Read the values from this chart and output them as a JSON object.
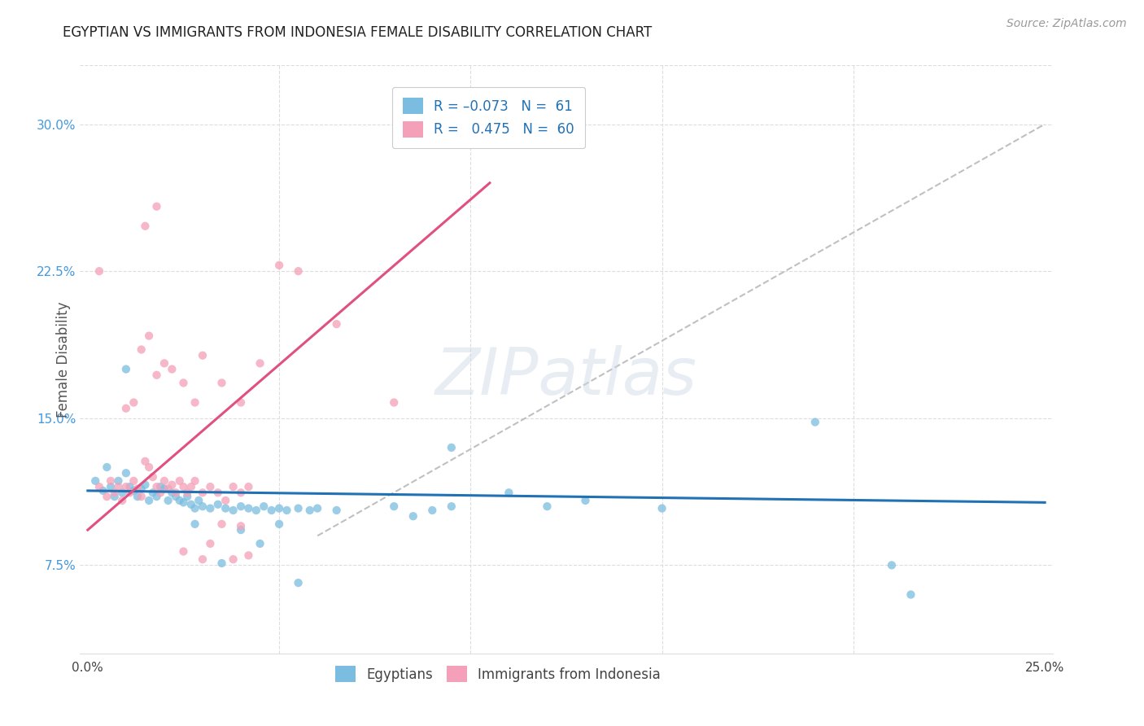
{
  "title": "EGYPTIAN VS IMMIGRANTS FROM INDONESIA FEMALE DISABILITY CORRELATION CHART",
  "source": "Source: ZipAtlas.com",
  "ylabel": "Female Disability",
  "ytick_labels": [
    "7.5%",
    "15.0%",
    "22.5%",
    "30.0%"
  ],
  "ytick_values": [
    0.075,
    0.15,
    0.225,
    0.3
  ],
  "xlim": [
    -0.002,
    0.252
  ],
  "ylim": [
    0.03,
    0.33
  ],
  "blue_color": "#7bbde0",
  "pink_color": "#f4a0b8",
  "blue_line_color": "#2171b5",
  "pink_line_color": "#e05080",
  "dashed_line_color": "#c0c0c0",
  "title_color": "#222222",
  "source_color": "#999999",
  "axis_label_color": "#555555",
  "right_tick_color": "#4499dd",
  "blue_scatter": [
    [
      0.002,
      0.118
    ],
    [
      0.004,
      0.113
    ],
    [
      0.005,
      0.125
    ],
    [
      0.006,
      0.115
    ],
    [
      0.007,
      0.11
    ],
    [
      0.008,
      0.118
    ],
    [
      0.009,
      0.112
    ],
    [
      0.01,
      0.122
    ],
    [
      0.011,
      0.115
    ],
    [
      0.012,
      0.113
    ],
    [
      0.013,
      0.11
    ],
    [
      0.014,
      0.114
    ],
    [
      0.015,
      0.116
    ],
    [
      0.016,
      0.108
    ],
    [
      0.017,
      0.112
    ],
    [
      0.018,
      0.11
    ],
    [
      0.019,
      0.115
    ],
    [
      0.02,
      0.114
    ],
    [
      0.021,
      0.108
    ],
    [
      0.022,
      0.112
    ],
    [
      0.023,
      0.11
    ],
    [
      0.024,
      0.108
    ],
    [
      0.025,
      0.107
    ],
    [
      0.026,
      0.11
    ],
    [
      0.027,
      0.106
    ],
    [
      0.028,
      0.104
    ],
    [
      0.029,
      0.108
    ],
    [
      0.03,
      0.105
    ],
    [
      0.032,
      0.104
    ],
    [
      0.034,
      0.106
    ],
    [
      0.036,
      0.104
    ],
    [
      0.038,
      0.103
    ],
    [
      0.04,
      0.105
    ],
    [
      0.042,
      0.104
    ],
    [
      0.044,
      0.103
    ],
    [
      0.046,
      0.105
    ],
    [
      0.048,
      0.103
    ],
    [
      0.05,
      0.104
    ],
    [
      0.052,
      0.103
    ],
    [
      0.055,
      0.104
    ],
    [
      0.058,
      0.103
    ],
    [
      0.06,
      0.104
    ],
    [
      0.065,
      0.103
    ],
    [
      0.028,
      0.096
    ],
    [
      0.04,
      0.093
    ],
    [
      0.05,
      0.096
    ],
    [
      0.045,
      0.086
    ],
    [
      0.035,
      0.076
    ],
    [
      0.055,
      0.066
    ],
    [
      0.08,
      0.105
    ],
    [
      0.085,
      0.1
    ],
    [
      0.09,
      0.103
    ],
    [
      0.095,
      0.105
    ],
    [
      0.11,
      0.112
    ],
    [
      0.12,
      0.105
    ],
    [
      0.13,
      0.108
    ],
    [
      0.15,
      0.104
    ],
    [
      0.01,
      0.175
    ],
    [
      0.095,
      0.135
    ],
    [
      0.19,
      0.148
    ],
    [
      0.21,
      0.075
    ],
    [
      0.215,
      0.06
    ]
  ],
  "pink_scatter": [
    [
      0.003,
      0.115
    ],
    [
      0.005,
      0.11
    ],
    [
      0.006,
      0.118
    ],
    [
      0.007,
      0.112
    ],
    [
      0.008,
      0.115
    ],
    [
      0.009,
      0.108
    ],
    [
      0.01,
      0.115
    ],
    [
      0.011,
      0.112
    ],
    [
      0.012,
      0.118
    ],
    [
      0.013,
      0.114
    ],
    [
      0.014,
      0.11
    ],
    [
      0.015,
      0.128
    ],
    [
      0.016,
      0.125
    ],
    [
      0.017,
      0.12
    ],
    [
      0.018,
      0.115
    ],
    [
      0.019,
      0.112
    ],
    [
      0.02,
      0.118
    ],
    [
      0.021,
      0.114
    ],
    [
      0.022,
      0.116
    ],
    [
      0.023,
      0.112
    ],
    [
      0.024,
      0.118
    ],
    [
      0.025,
      0.115
    ],
    [
      0.026,
      0.112
    ],
    [
      0.027,
      0.115
    ],
    [
      0.028,
      0.118
    ],
    [
      0.03,
      0.112
    ],
    [
      0.032,
      0.115
    ],
    [
      0.034,
      0.112
    ],
    [
      0.036,
      0.108
    ],
    [
      0.038,
      0.115
    ],
    [
      0.04,
      0.112
    ],
    [
      0.042,
      0.115
    ],
    [
      0.003,
      0.225
    ],
    [
      0.01,
      0.155
    ],
    [
      0.012,
      0.158
    ],
    [
      0.014,
      0.185
    ],
    [
      0.016,
      0.192
    ],
    [
      0.018,
      0.172
    ],
    [
      0.02,
      0.178
    ],
    [
      0.022,
      0.175
    ],
    [
      0.025,
      0.168
    ],
    [
      0.028,
      0.158
    ],
    [
      0.03,
      0.182
    ],
    [
      0.035,
      0.168
    ],
    [
      0.04,
      0.158
    ],
    [
      0.045,
      0.178
    ],
    [
      0.05,
      0.228
    ],
    [
      0.055,
      0.225
    ],
    [
      0.065,
      0.198
    ],
    [
      0.025,
      0.082
    ],
    [
      0.03,
      0.078
    ],
    [
      0.032,
      0.086
    ],
    [
      0.035,
      0.096
    ],
    [
      0.038,
      0.078
    ],
    [
      0.04,
      0.095
    ],
    [
      0.042,
      0.08
    ],
    [
      0.015,
      0.248
    ],
    [
      0.018,
      0.258
    ],
    [
      0.08,
      0.158
    ]
  ],
  "blue_scatter_sizes": 55,
  "pink_scatter_sizes": 55,
  "blue_line_x": [
    0.0,
    0.25
  ],
  "blue_line_y": [
    0.113,
    0.107
  ],
  "pink_line_x": [
    0.0,
    0.105
  ],
  "pink_line_y": [
    0.093,
    0.27
  ],
  "dashed_line_x": [
    0.06,
    0.25
  ],
  "dashed_line_y": [
    0.09,
    0.3
  ]
}
